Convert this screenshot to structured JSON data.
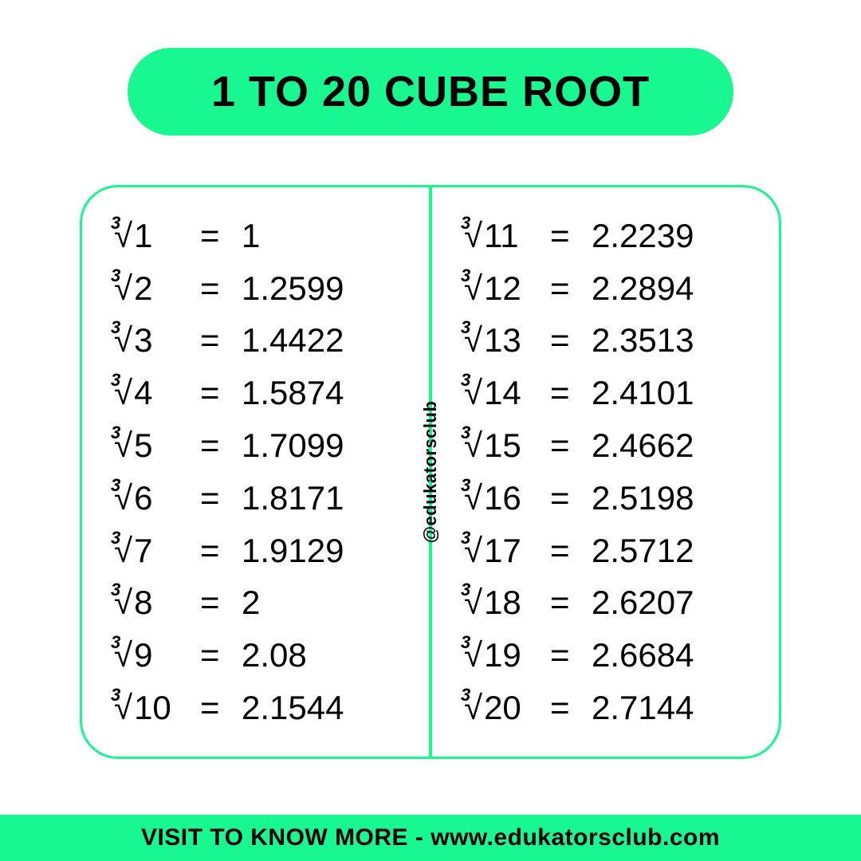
{
  "colors": {
    "accent": "#19f791",
    "background": "#ffffff",
    "text": "#000000"
  },
  "title": "1 TO 20 CUBE ROOT",
  "watermark": "@edukatorsclub",
  "footer_lead": "VISIT TO KNOW MORE - ",
  "footer_url": "www.edukatorsclub.com",
  "table": {
    "type": "table",
    "left": [
      {
        "n": "1",
        "v": "1"
      },
      {
        "n": "2",
        "v": "1.2599"
      },
      {
        "n": "3",
        "v": "1.4422"
      },
      {
        "n": "4",
        "v": "1.5874"
      },
      {
        "n": "5",
        "v": "1.7099"
      },
      {
        "n": "6",
        "v": "1.8171"
      },
      {
        "n": "7",
        "v": "1.9129"
      },
      {
        "n": "8",
        "v": "2"
      },
      {
        "n": "9",
        "v": "2.08"
      },
      {
        "n": "10",
        "v": "2.1544"
      }
    ],
    "right": [
      {
        "n": "11",
        "v": "2.2239"
      },
      {
        "n": "12",
        "v": "2.2894"
      },
      {
        "n": "13",
        "v": "2.3513"
      },
      {
        "n": "14",
        "v": "2.4101"
      },
      {
        "n": "15",
        "v": "2.4662"
      },
      {
        "n": "16",
        "v": "2.5198"
      },
      {
        "n": "17",
        "v": "2.5712"
      },
      {
        "n": "18",
        "v": "2.6207"
      },
      {
        "n": "19",
        "v": "2.6684"
      },
      {
        "n": "20",
        "v": "2.7144"
      }
    ],
    "border_color": "#19f791",
    "border_radius": 48,
    "border_width": 3,
    "font_size": 42,
    "index_font_size": 22,
    "title_font_size": 54,
    "footer_font_size": 30
  }
}
